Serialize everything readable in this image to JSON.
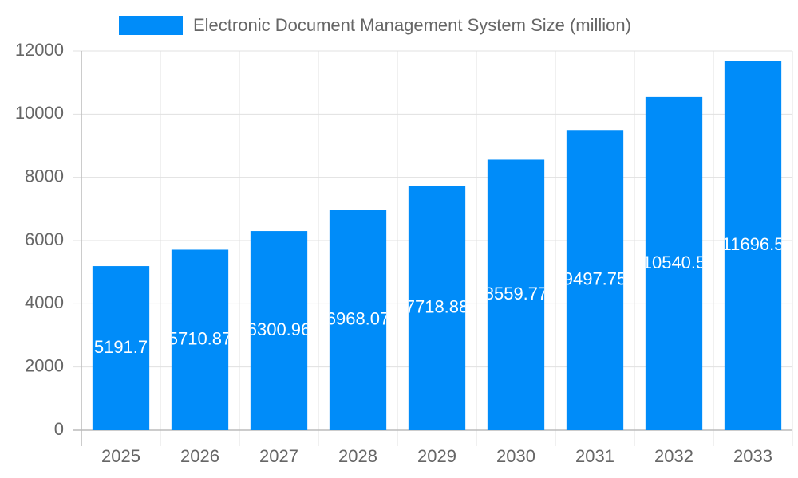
{
  "chart_data": {
    "type": "bar",
    "legend": "Electronic Document Management System Size (million)",
    "categories": [
      "2025",
      "2026",
      "2027",
      "2028",
      "2029",
      "2030",
      "2031",
      "2032",
      "2033"
    ],
    "values": [
      5191.7,
      5710.87,
      6300.96,
      6968.07,
      7718.88,
      8559.77,
      9497.75,
      10540.5,
      11696.5
    ],
    "color": "#008cf9",
    "ylim": [
      0,
      12000
    ],
    "yticks": [
      0,
      2000,
      4000,
      6000,
      8000,
      10000,
      12000
    ],
    "grid": true
  }
}
